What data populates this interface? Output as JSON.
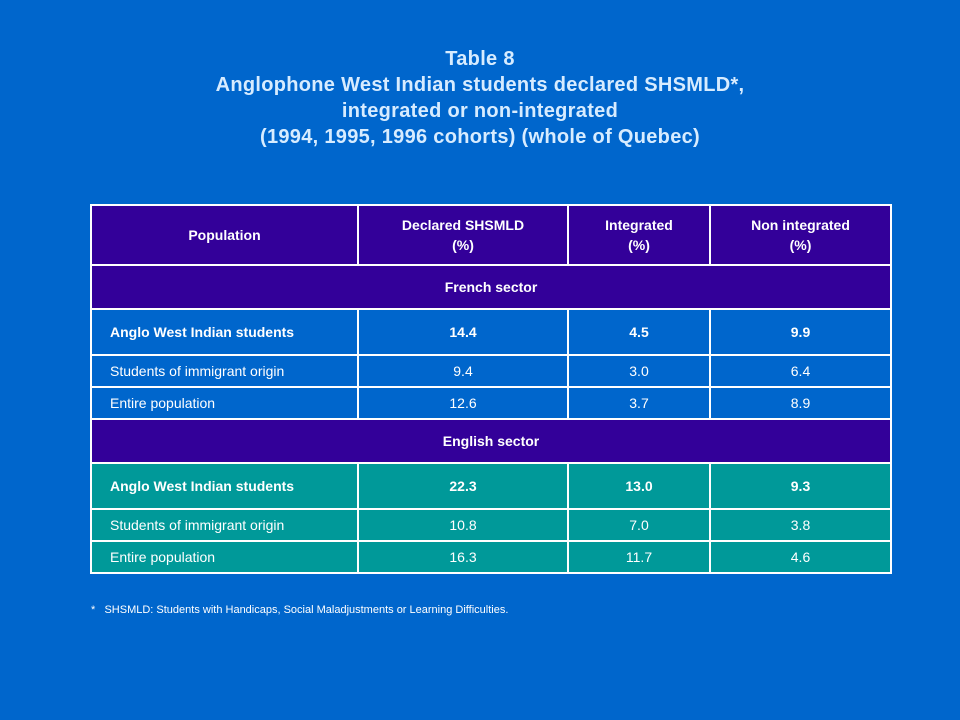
{
  "title": {
    "line1": "Table 8",
    "line2": "Anglophone West Indian students declared SHSMLD*,",
    "line3": "integrated or non-integrated",
    "line4": "(1994, 1995, 1996 cohorts) (whole of Quebec)"
  },
  "table": {
    "headers": {
      "population": "Population",
      "declared_line1": "Declared SHSMLD",
      "declared_line2": "(%)",
      "integrated_line1": "Integrated",
      "integrated_line2": "(%)",
      "non_integrated_line1": "Non integrated",
      "non_integrated_line2": "(%)"
    },
    "sectors": [
      {
        "name": "French sector",
        "rows": [
          {
            "label": "Anglo West Indian students",
            "declared": "14.4",
            "integrated": "4.5",
            "non_integrated": "9.9"
          },
          {
            "label": "Students of immigrant origin",
            "declared": "9.4",
            "integrated": "3.0",
            "non_integrated": "6.4"
          },
          {
            "label": "Entire population",
            "declared": "12.6",
            "integrated": "3.7",
            "non_integrated": "8.9"
          }
        ]
      },
      {
        "name": "English sector",
        "rows": [
          {
            "label": "Anglo West Indian students",
            "declared": "22.3",
            "integrated": "13.0",
            "non_integrated": "9.3"
          },
          {
            "label": "Students of immigrant origin",
            "declared": "10.8",
            "integrated": "7.0",
            "non_integrated": "3.8"
          },
          {
            "label": "Entire population",
            "declared": "16.3",
            "integrated": "11.7",
            "non_integrated": "4.6"
          }
        ]
      }
    ]
  },
  "footnote": {
    "marker": "*",
    "text": "SHSMLD: Students with Handicaps, Social Maladjustments or Learning Difficulties."
  },
  "colors": {
    "background": "#0066cc",
    "header_fill": "#330099",
    "french_rows": "#0066cc",
    "english_rows": "#009999",
    "title_text": "#d7ecff"
  }
}
